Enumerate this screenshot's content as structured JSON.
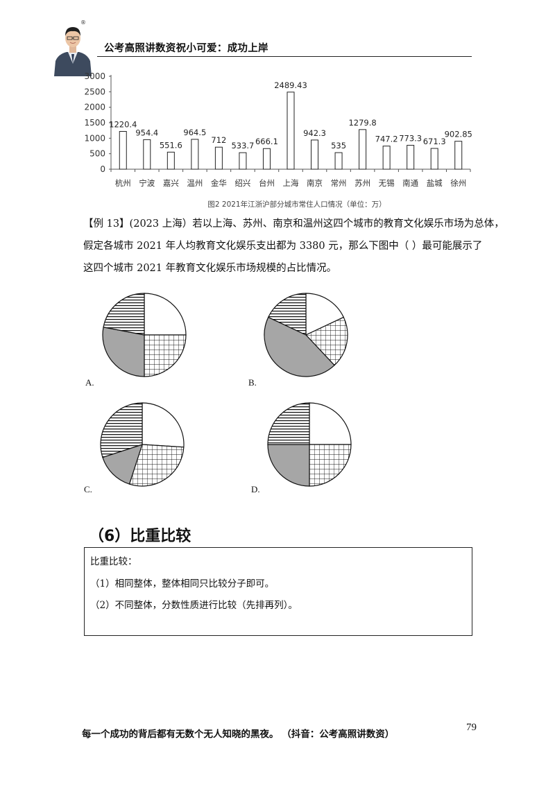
{
  "header": {
    "title": "公考高照讲数资祝小可爱：成功上岸",
    "reg_mark": "®"
  },
  "chart_data": {
    "type": "bar",
    "categories": [
      "杭州",
      "宁波",
      "嘉兴",
      "温州",
      "金华",
      "绍兴",
      "台州",
      "上海",
      "南京",
      "常州",
      "苏州",
      "无锡",
      "南通",
      "盐城",
      "徐州"
    ],
    "values": [
      1220.4,
      954.4,
      551.6,
      964.5,
      712,
      533.7,
      666.1,
      2489.43,
      942.3,
      535,
      1279.8,
      747.2,
      773.3,
      671.3,
      902.85
    ],
    "value_labels": [
      "1220.4",
      "954.4",
      "551.6",
      "964.5",
      "712",
      "533.7",
      "666.1",
      "2489.43",
      "942.3",
      "535",
      "1279.8",
      "747.2",
      "773.3",
      "671.3",
      "902.85"
    ],
    "yticks": [
      "0",
      "500",
      "1000",
      "1500",
      "2000",
      "2500",
      "3000"
    ],
    "ylim": [
      0,
      3000
    ],
    "caption": "图2  2021年江浙沪部分城市常住人口情况（单位：万）"
  },
  "question": {
    "line1": "【例 13】(2023 上海）若以上海、苏州、南京和温州这四个城市的教育文化娱乐市场为总体，",
    "line2": "假定各城市 2021 年人均教育文化娱乐支出都为 3380 元，那么下图中（        ）最可能展示了",
    "line3": "这四个城市 2021 年教育文化娱乐市场规模的占比情况。"
  },
  "options": [
    {
      "label": "A.",
      "slices": [
        0.25,
        0.25,
        0.28,
        0.22
      ]
    },
    {
      "label": "B.",
      "slices": [
        0.18,
        0.2,
        0.44,
        0.18
      ]
    },
    {
      "label": "C.",
      "slices": [
        0.26,
        0.29,
        0.15,
        0.3
      ]
    },
    {
      "label": "D.",
      "slices": [
        0.25,
        0.25,
        0.25,
        0.25
      ]
    }
  ],
  "section": {
    "title": "（6）比重比较",
    "box_title": "比重比较：",
    "rule1": "（1）相同整体，整体相同只比较分子即可。",
    "rule2": "（2）不同整体，分数性质进行比较（先排再列）。"
  },
  "footer": {
    "text": "每一个成功的背后都有无数个无人知晓的黑夜。   （抖音：公考高照讲数资）",
    "page_number": "79"
  }
}
